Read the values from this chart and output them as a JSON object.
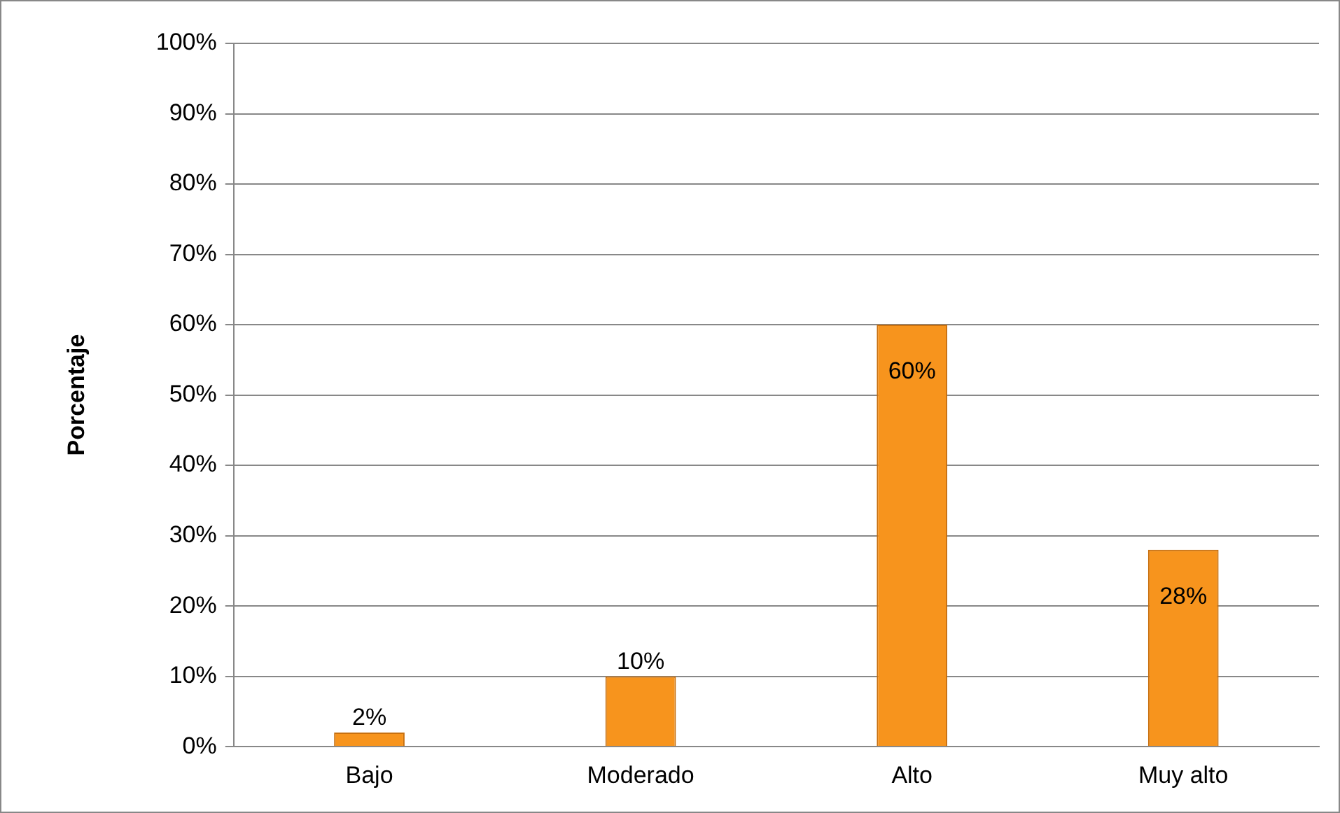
{
  "chart_data": {
    "type": "bar",
    "ylabel": "Porcentaje",
    "categories": [
      "Bajo",
      "Moderado",
      "Alto",
      "Muy alto"
    ],
    "values": [
      2,
      10,
      60,
      28
    ],
    "color": "#f7941d",
    "ylim": [
      0,
      100
    ],
    "yticks": [
      {
        "value": 0,
        "label": "0%"
      },
      {
        "value": 10,
        "label": "10%"
      },
      {
        "value": 20,
        "label": "20%"
      },
      {
        "value": 30,
        "label": "30%"
      },
      {
        "value": 40,
        "label": "40%"
      },
      {
        "value": 50,
        "label": "50%"
      },
      {
        "value": 60,
        "label": "60%"
      },
      {
        "value": 70,
        "label": "70%"
      },
      {
        "value": 80,
        "label": "80%"
      },
      {
        "value": 90,
        "label": "90%"
      },
      {
        "value": 100,
        "label": "100%"
      }
    ],
    "value_labels": [
      "2%",
      "10%",
      "60%",
      "28%"
    ],
    "grid": "y",
    "legend": false
  }
}
